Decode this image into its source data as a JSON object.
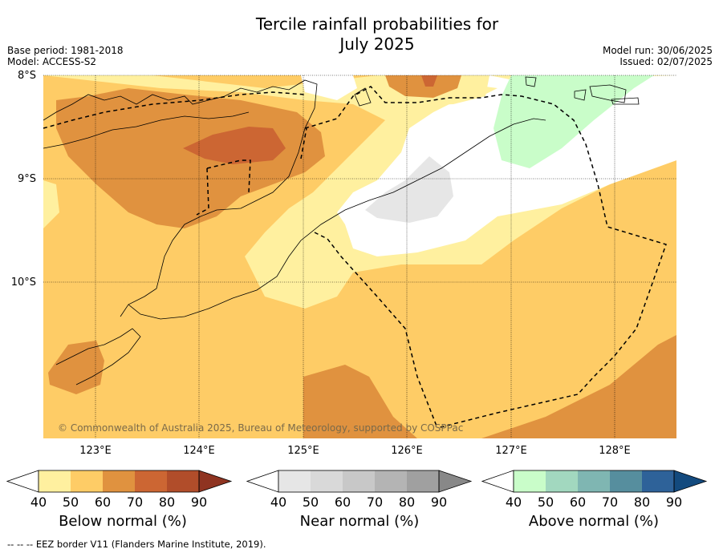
{
  "header": {
    "title_line1": "Tercile rainfall probabilities for",
    "title_line2": "July 2025",
    "base_period": "Base period: 1981-2018",
    "model": "Model: ACCESS-S2",
    "model_run": "Model run: 30/06/2025",
    "issued": "Issued: 02/07/2025"
  },
  "map": {
    "copyright": "© Commonwealth of Australia 2025, Bureau of Meteorology, supported by COSPPac",
    "lat_labels": [
      "8°S",
      "9°S",
      "10°S"
    ],
    "lon_labels": [
      "123°E",
      "124°E",
      "125°E",
      "126°E",
      "127°E",
      "128°E"
    ]
  },
  "chart_data": {
    "type": "heatmap",
    "title": "Tercile rainfall probabilities for July 2025",
    "x_range_deg_e": [
      122.5,
      128.6
    ],
    "y_range_deg_s": [
      8.0,
      11.5
    ],
    "x_ticks": [
      123,
      124,
      125,
      126,
      127,
      128
    ],
    "y_ticks": [
      8,
      9,
      10
    ],
    "grid": true,
    "colorbars": [
      {
        "name": "Below normal (%)",
        "levels": [
          40,
          50,
          60,
          70,
          80,
          90
        ],
        "colors": [
          "#fff09f",
          "#fecc66",
          "#e0923f",
          "#cc6633",
          "#b14d2a"
        ],
        "over_color": "#8f3421"
      },
      {
        "name": "Near normal (%)",
        "levels": [
          40,
          50,
          60,
          70,
          80,
          90
        ],
        "colors": [
          "#e6e6e6",
          "#d9d9d9",
          "#c8c8c8",
          "#b4b4b4",
          "#a0a0a0"
        ],
        "over_color": "#888888"
      },
      {
        "name": "Above normal (%)",
        "levels": [
          40,
          50,
          60,
          70,
          80,
          90
        ],
        "colors": [
          "#c9fdc9",
          "#a2d8bf",
          "#7fb6b2",
          "#568e9e",
          "#2e6299"
        ],
        "over_color": "#134a7e"
      }
    ],
    "regions": [
      {
        "category": "Below normal",
        "range": "50-60",
        "location": "most of the domain"
      },
      {
        "category": "Below normal",
        "range": "60-70",
        "location": "northern Timor and southwest corner, southeast corner"
      },
      {
        "category": "Below normal",
        "range": "70-80",
        "location": "central northern Timor, near 8°S 126.2°E"
      },
      {
        "category": "Below normal",
        "range": "40-50",
        "location": "band across central Timor Sea"
      },
      {
        "category": "Near normal",
        "range": "40-50",
        "location": "near 9.3°S 125.8°E"
      },
      {
        "category": "Above normal",
        "range": "40-50",
        "location": "northeast near 8.3°S 127.4°E"
      }
    ]
  },
  "legend": {
    "below_label": "Below normal (%)",
    "near_label": "Near normal (%)",
    "above_label": "Above normal (%)",
    "tick_labels": [
      "40",
      "50",
      "60",
      "70",
      "80",
      "90"
    ],
    "eez_note": "--  --  -- EEZ border V11 (Flanders Marine Institute, 2019)."
  }
}
